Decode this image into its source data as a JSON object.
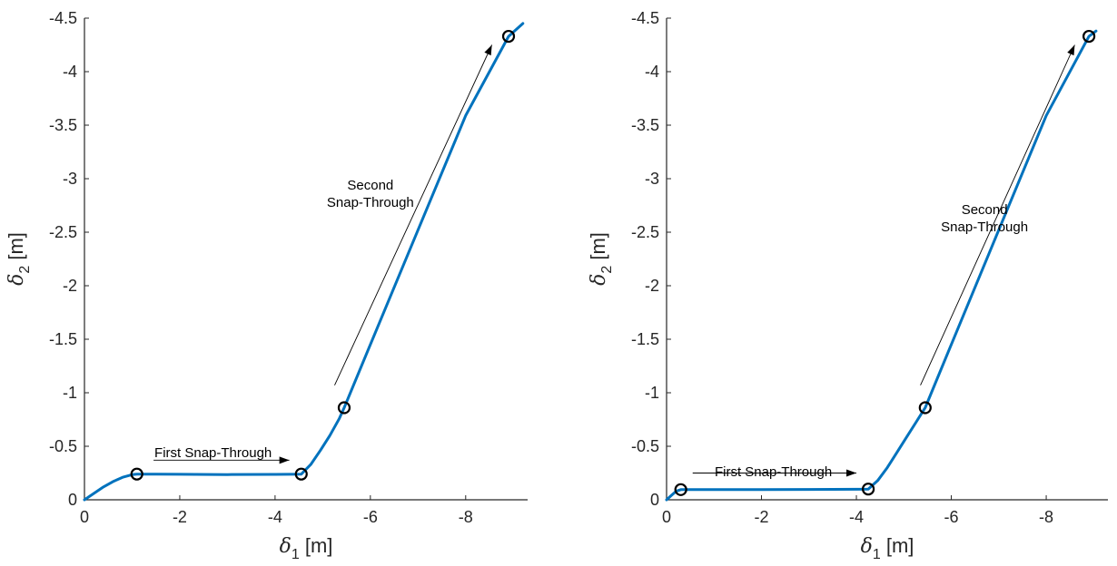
{
  "colors": {
    "curve": "#0072BD",
    "axes": "#262626",
    "marker": "#000000"
  },
  "chart_data": [
    {
      "type": "line",
      "xlabel": "δ",
      "xlabel_sub": "1",
      "xlabel_unit": " [m]",
      "ylabel": "δ",
      "ylabel_sub": "2",
      "ylabel_unit": " [m]",
      "xlim": [
        0,
        -9.3
      ],
      "ylim": [
        0,
        -4.5
      ],
      "xticks": [
        0,
        -2,
        -4,
        -6,
        -8
      ],
      "xtick_labels": [
        "0",
        "-2",
        "-4",
        "-6",
        "-8"
      ],
      "yticks": [
        0,
        -0.5,
        -1,
        -1.5,
        -2,
        -2.5,
        -3,
        -3.5,
        -4,
        -4.5
      ],
      "ytick_labels": [
        "0",
        "-0.5",
        "-1",
        "-1.5",
        "-2",
        "-2.5",
        "-3",
        "-3.5",
        "-4",
        "-4.5"
      ],
      "series": [
        {
          "x": [
            0,
            -0.2,
            -0.4,
            -0.6,
            -0.8,
            -1.0,
            -1.1,
            -1.5,
            -2.0,
            -3.0,
            -4.0,
            -4.3,
            -4.55,
            -4.75,
            -4.95,
            -5.15,
            -5.35,
            -5.45,
            -6.0,
            -7.0,
            -8.0,
            -8.9,
            -9.2
          ],
          "y": [
            0,
            -0.06,
            -0.12,
            -0.17,
            -0.21,
            -0.235,
            -0.24,
            -0.24,
            -0.238,
            -0.236,
            -0.237,
            -0.238,
            -0.24,
            -0.33,
            -0.46,
            -0.6,
            -0.76,
            -0.86,
            -1.45,
            -2.52,
            -3.59,
            -4.33,
            -4.45
          ]
        }
      ],
      "markers": {
        "x": [
          -1.1,
          -4.55,
          -5.45,
          -8.9
        ],
        "y": [
          -0.24,
          -0.24,
          -0.86,
          -4.33
        ]
      },
      "annotations": [
        {
          "lines": [
            "First Snap-Through"
          ],
          "x": -2.7,
          "y": -0.4,
          "arrow_from": [
            -1.45,
            -0.37
          ],
          "arrow_to": [
            -4.3,
            -0.37
          ]
        },
        {
          "lines": [
            "Second",
            "Snap-Through"
          ],
          "x": -6.0,
          "y": -2.9,
          "arrow_from": [
            -5.25,
            -1.07
          ],
          "arrow_to": [
            -8.55,
            -4.25
          ]
        }
      ]
    },
    {
      "type": "line",
      "xlabel": "δ",
      "xlabel_sub": "1",
      "xlabel_unit": " [m]",
      "ylabel": "δ",
      "ylabel_sub": "2",
      "ylabel_unit": " [m]",
      "xlim": [
        0,
        -9.3
      ],
      "ylim": [
        0,
        -4.5
      ],
      "xticks": [
        0,
        -2,
        -4,
        -6,
        -8
      ],
      "xtick_labels": [
        "0",
        "-2",
        "-4",
        "-6",
        "-8"
      ],
      "yticks": [
        0,
        -0.5,
        -1,
        -1.5,
        -2,
        -2.5,
        -3,
        -3.5,
        -4,
        -4.5
      ],
      "ytick_labels": [
        "0",
        "-0.5",
        "-1",
        "-1.5",
        "-2",
        "-2.5",
        "-3",
        "-3.5",
        "-4",
        "-4.5"
      ],
      "series": [
        {
          "x": [
            0,
            -0.1,
            -0.2,
            -0.3,
            -1.0,
            -2.0,
            -3.0,
            -4.0,
            -4.25,
            -4.45,
            -4.65,
            -4.85,
            -5.05,
            -5.25,
            -5.45,
            -6.0,
            -7.0,
            -8.0,
            -8.9,
            -9.05
          ],
          "y": [
            0,
            -0.04,
            -0.08,
            -0.095,
            -0.095,
            -0.095,
            -0.097,
            -0.098,
            -0.1,
            -0.18,
            -0.3,
            -0.44,
            -0.58,
            -0.72,
            -0.86,
            -1.45,
            -2.52,
            -3.59,
            -4.33,
            -4.38
          ]
        }
      ],
      "markers": {
        "x": [
          -0.3,
          -4.25,
          -5.45,
          -8.9
        ],
        "y": [
          -0.095,
          -0.1,
          -0.86,
          -4.33
        ]
      },
      "annotations": [
        {
          "lines": [
            "First Snap-Through"
          ],
          "x": -2.25,
          "y": -0.22,
          "arrow_from": [
            -0.55,
            -0.25
          ],
          "arrow_to": [
            -4.0,
            -0.25
          ]
        },
        {
          "lines": [
            "Second",
            "Snap-Through"
          ],
          "x": -6.7,
          "y": -2.67,
          "arrow_from": [
            -5.35,
            -1.07
          ],
          "arrow_to": [
            -8.6,
            -4.25
          ]
        }
      ]
    }
  ]
}
